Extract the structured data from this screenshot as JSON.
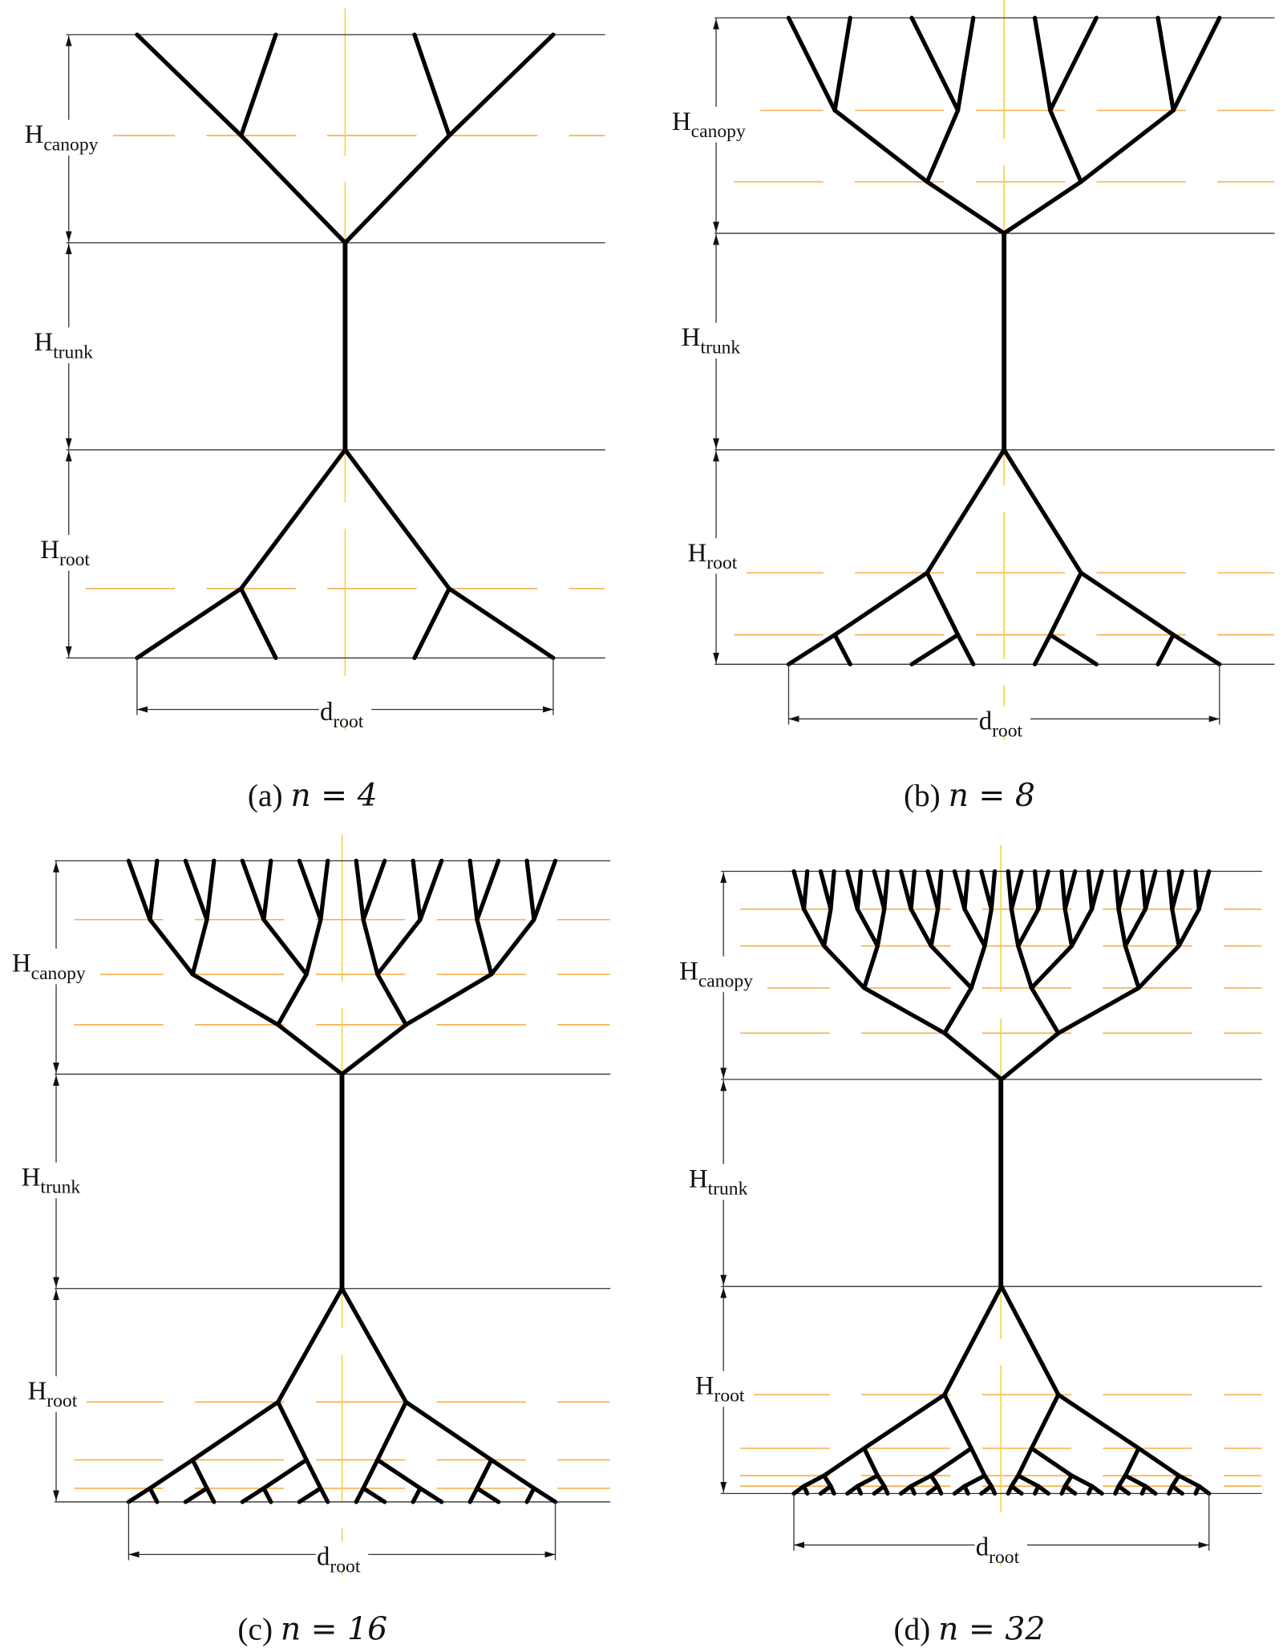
{
  "colors": {
    "branch": "#000000",
    "reference_line": "#333333",
    "level_line": "#f5b04a",
    "center_line": "#f7d23c"
  },
  "labels": {
    "H": "H",
    "canopy": "canopy",
    "trunk": "trunk",
    "root": "root",
    "d": "d"
  },
  "panels": [
    {
      "id": "a",
      "tag": "(a)",
      "n_expr": "n = 4",
      "n": 4
    },
    {
      "id": "b",
      "tag": "(b)",
      "n_expr": "n = 8",
      "n": 8
    },
    {
      "id": "c",
      "tag": "(c)",
      "n_expr": "n = 16",
      "n": 16
    },
    {
      "id": "d",
      "tag": "(d)",
      "n_expr": "n = 32",
      "n": 32
    }
  ]
}
